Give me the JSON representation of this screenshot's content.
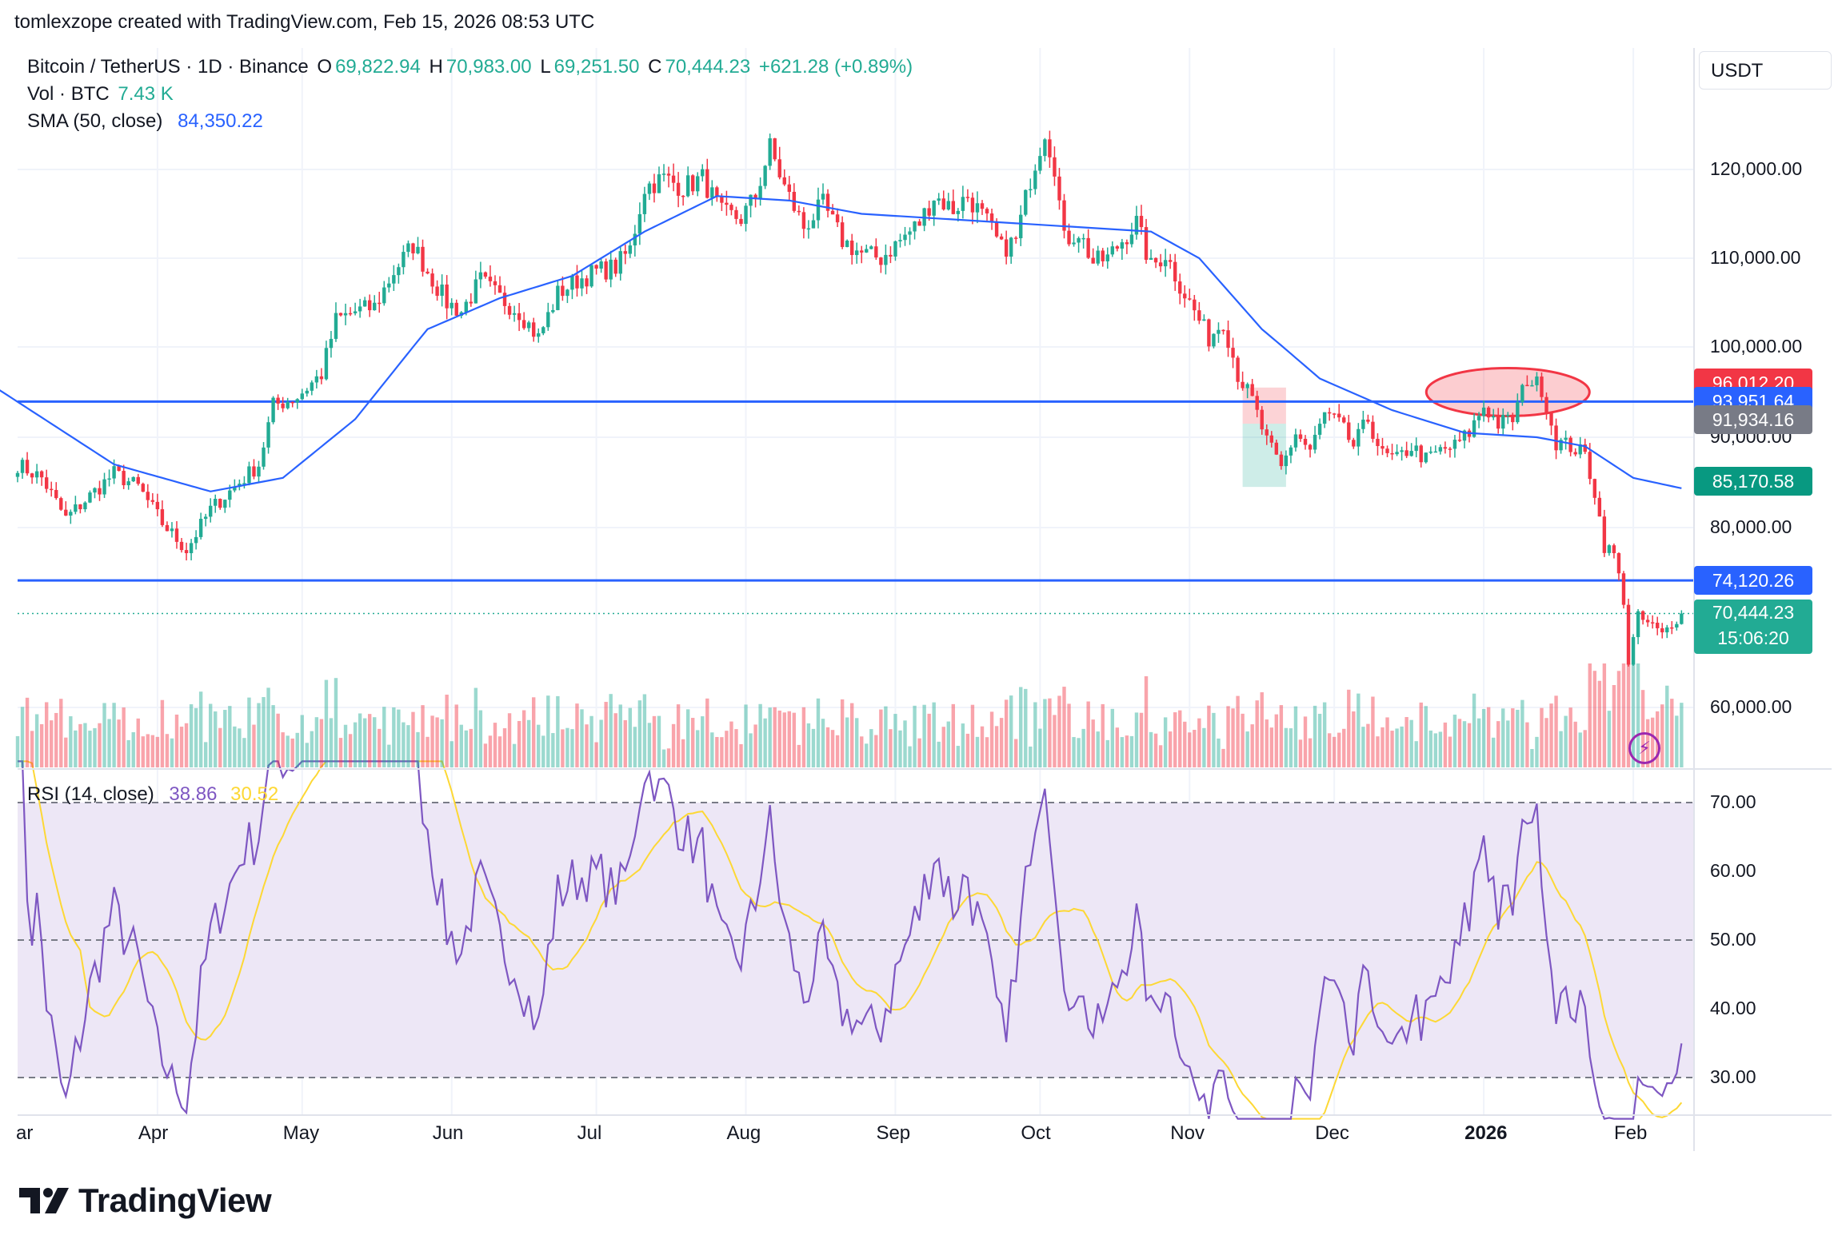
{
  "header": {
    "attribution": "tomlexzope created with TradingView.com, Feb 15, 2026 08:53 UTC"
  },
  "legend": {
    "symbol": "Bitcoin / TetherUS · 1D · Binance",
    "o_key": "O",
    "o_val": "69,822.94",
    "h_key": "H",
    "h_val": "70,983.00",
    "l_key": "L",
    "l_val": "69,251.50",
    "c_key": "C",
    "c_val": "70,444.23",
    "change": "+621.28 (+0.89%)",
    "vol_label": "Vol · BTC",
    "vol_value": "7.43 K",
    "sma_label": "SMA (50, close)",
    "sma_value": "84,350.22",
    "rsi_label": "RSI (14, close)",
    "rsi_value": "38.86",
    "rsi_ma_value": "30.52"
  },
  "toolbar": {
    "currency": "USDT"
  },
  "footer": {
    "brand": "TradingView"
  },
  "colors": {
    "up": "#22ab94",
    "down": "#f23645",
    "sma": "#2962ff",
    "level": "#2962ff",
    "rsi": "#7e57c2",
    "rsi_ma": "#fdd835",
    "rsi_band": "#ede7f6"
  },
  "price_tags": [
    {
      "value": "96,012.20",
      "color": "#f23645",
      "price": 96012.2
    },
    {
      "value": "93,951.64",
      "color": "#2962ff",
      "price": 93951.64
    },
    {
      "value": "91,934.16",
      "color": "#787b86",
      "price": 91934.16
    },
    {
      "value": "85,170.58",
      "color": "#089981",
      "price": 85170.58
    },
    {
      "value": "74,120.26",
      "color": "#2962ff",
      "price": 74120.26
    },
    {
      "value": "70,444.23",
      "color": "#22ab94",
      "price": 70444.23,
      "countdown": "15:06:20"
    }
  ],
  "chart_data": {
    "type": "candlestick",
    "symbol": "Bitcoin / TetherUS",
    "interval": "1D",
    "y_axis": {
      "ticks": [
        60000,
        80000,
        90000,
        100000,
        110000,
        120000
      ],
      "tick_labels": [
        "60,000.00",
        "80,000.00",
        "90,000.00",
        "100,000.00",
        "110,000.00",
        "120,000.00"
      ],
      "range": [
        58000,
        130000
      ]
    },
    "x_axis": {
      "labels": [
        "ar",
        "Apr",
        "May",
        "Jun",
        "Jul",
        "Aug",
        "Sep",
        "Oct",
        "Nov",
        "Dec",
        "2026",
        "Feb"
      ],
      "label_day_index": [
        -2,
        29,
        59,
        90,
        120,
        151,
        182,
        212,
        243,
        273,
        304,
        335
      ]
    },
    "horizontal_levels": [
      93951.64,
      74120.26
    ],
    "close_series": {
      "anchors": [
        [
          0,
          87000
        ],
        [
          5,
          85500
        ],
        [
          10,
          81000
        ],
        [
          15,
          83500
        ],
        [
          20,
          86000
        ],
        [
          25,
          84500
        ],
        [
          30,
          80500
        ],
        [
          35,
          77500
        ],
        [
          40,
          82000
        ],
        [
          45,
          84500
        ],
        [
          50,
          87000
        ],
        [
          53,
          93500
        ],
        [
          58,
          94500
        ],
        [
          63,
          97000
        ],
        [
          66,
          103000
        ],
        [
          70,
          104000
        ],
        [
          74,
          104500
        ],
        [
          78,
          108500
        ],
        [
          82,
          111500
        ],
        [
          85,
          108500
        ],
        [
          89,
          105000
        ],
        [
          92,
          104000
        ],
        [
          96,
          107500
        ],
        [
          100,
          105500
        ],
        [
          104,
          104000
        ],
        [
          108,
          101000
        ],
        [
          112,
          106000
        ],
        [
          116,
          107500
        ],
        [
          120,
          108500
        ],
        [
          124,
          109000
        ],
        [
          127,
          111000
        ],
        [
          130,
          118000
        ],
        [
          134,
          119000
        ],
        [
          138,
          118000
        ],
        [
          142,
          119000
        ],
        [
          146,
          115000
        ],
        [
          150,
          114500
        ],
        [
          153,
          117000
        ],
        [
          156,
          122500
        ],
        [
          159,
          118000
        ],
        [
          163,
          113500
        ],
        [
          167,
          116000
        ],
        [
          171,
          112000
        ],
        [
          175,
          110500
        ],
        [
          179,
          110000
        ],
        [
          183,
          112000
        ],
        [
          187,
          114000
        ],
        [
          190,
          117000
        ],
        [
          194,
          115500
        ],
        [
          197,
          117000
        ],
        [
          201,
          114000
        ],
        [
          204,
          111000
        ],
        [
          207,
          112000
        ],
        [
          210,
          119000
        ],
        [
          213,
          124500
        ],
        [
          215,
          120500
        ],
        [
          217,
          112000
        ],
        [
          220,
          113000
        ],
        [
          223,
          109500
        ],
        [
          226,
          110000
        ],
        [
          229,
          112000
        ],
        [
          232,
          114000
        ],
        [
          235,
          109000
        ],
        [
          238,
          110500
        ],
        [
          241,
          107000
        ],
        [
          244,
          104000
        ],
        [
          247,
          101000
        ],
        [
          250,
          103000
        ],
        [
          253,
          97000
        ],
        [
          256,
          94000
        ],
        [
          259,
          89500
        ],
        [
          262,
          86500
        ],
        [
          265,
          90500
        ],
        [
          268,
          88500
        ],
        [
          271,
          92500
        ],
        [
          274,
          91500
        ],
        [
          277,
          89000
        ],
        [
          280,
          92000
        ],
        [
          283,
          88000
        ],
        [
          286,
          87500
        ],
        [
          289,
          89000
        ],
        [
          292,
          87500
        ],
        [
          295,
          88500
        ],
        [
          298,
          89000
        ],
        [
          301,
          90500
        ],
        [
          304,
          93500
        ],
        [
          307,
          91500
        ],
        [
          310,
          92000
        ],
        [
          313,
          96500
        ],
        [
          316,
          95500
        ],
        [
          319,
          89500
        ],
        [
          322,
          89000
        ],
        [
          325,
          88000
        ],
        [
          327,
          84000
        ],
        [
          329,
          78000
        ],
        [
          331,
          77000
        ],
        [
          333,
          72000
        ],
        [
          334,
          65000
        ],
        [
          336,
          70000
        ],
        [
          339,
          69000
        ],
        [
          341,
          68000
        ],
        [
          343,
          69500
        ],
        [
          345,
          70444.23
        ]
      ]
    },
    "sma_50_series": {
      "anchors": [
        [
          -6,
          96000
        ],
        [
          20,
          87000
        ],
        [
          40,
          84000
        ],
        [
          55,
          85500
        ],
        [
          70,
          92000
        ],
        [
          85,
          102000
        ],
        [
          100,
          105500
        ],
        [
          115,
          108000
        ],
        [
          130,
          113000
        ],
        [
          145,
          117000
        ],
        [
          160,
          116500
        ],
        [
          175,
          115000
        ],
        [
          190,
          114500
        ],
        [
          205,
          114000
        ],
        [
          220,
          113500
        ],
        [
          235,
          113000
        ],
        [
          245,
          110000
        ],
        [
          258,
          102000
        ],
        [
          270,
          96500
        ],
        [
          285,
          93000
        ],
        [
          300,
          90500
        ],
        [
          315,
          90000
        ],
        [
          325,
          89000
        ],
        [
          335,
          85500
        ],
        [
          345,
          84350.22
        ]
      ]
    },
    "volume": {
      "unit": "BTC",
      "last": "7.43 K"
    },
    "rsi": {
      "period": 14,
      "last": 38.86,
      "ma_last": 30.52,
      "y_ticks": [
        30,
        40,
        50,
        60,
        70
      ],
      "y_tick_labels": [
        "30.00",
        "40.00",
        "50.00",
        "60.00",
        "70.00"
      ],
      "range": [
        26,
        74
      ],
      "bands": [
        30,
        50,
        70
      ]
    },
    "annotations": [
      {
        "type": "ellipse",
        "day_center": 309,
        "price_center": 95000,
        "note": "red ellipse near Jan 2026 high"
      },
      {
        "type": "long-position",
        "day_start": 254,
        "day_end": 263,
        "entry": 91500,
        "target": 95500,
        "stop": 84500
      }
    ],
    "grid": true
  }
}
